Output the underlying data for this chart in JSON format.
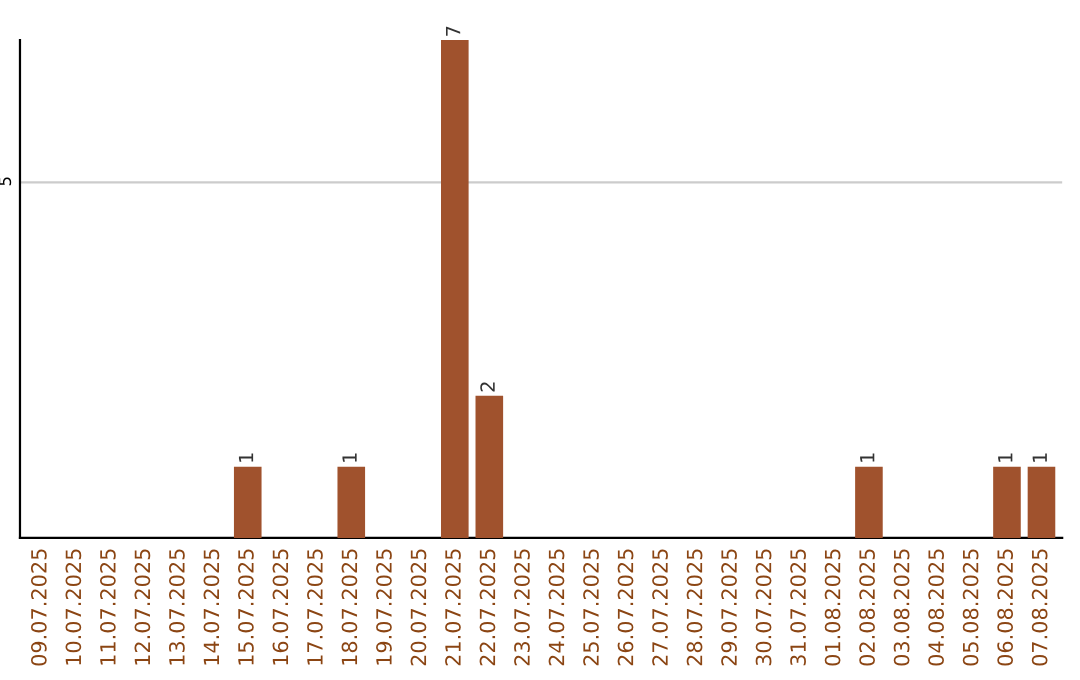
{
  "chart_data": {
    "type": "bar",
    "categories": [
      "09.07.2025",
      "10.07.2025",
      "11.07.2025",
      "12.07.2025",
      "13.07.2025",
      "14.07.2025",
      "15.07.2025",
      "16.07.2025",
      "17.07.2025",
      "18.07.2025",
      "19.07.2025",
      "20.07.2025",
      "21.07.2025",
      "22.07.2025",
      "23.07.2025",
      "24.07.2025",
      "25.07.2025",
      "26.07.2025",
      "27.07.2025",
      "28.07.2025",
      "29.07.2025",
      "30.07.2025",
      "31.07.2025",
      "01.08.2025",
      "02.08.2025",
      "03.08.2025",
      "04.08.2025",
      "05.08.2025",
      "06.08.2025",
      "07.08.2025"
    ],
    "values": [
      0,
      0,
      0,
      0,
      0,
      0,
      1,
      0,
      0,
      1,
      0,
      0,
      7,
      2,
      0,
      0,
      0,
      0,
      0,
      0,
      0,
      0,
      0,
      0,
      1,
      0,
      0,
      0,
      1,
      1
    ],
    "value_labels": [
      null,
      null,
      null,
      null,
      null,
      null,
      "1",
      null,
      null,
      "1",
      null,
      null,
      "7",
      "2",
      null,
      null,
      null,
      null,
      null,
      null,
      null,
      null,
      null,
      null,
      "1",
      null,
      null,
      null,
      "1",
      "1"
    ],
    "color": "#a0522d",
    "ylim": [
      0,
      7
    ],
    "yticks": [
      5
    ],
    "grid": "y"
  }
}
